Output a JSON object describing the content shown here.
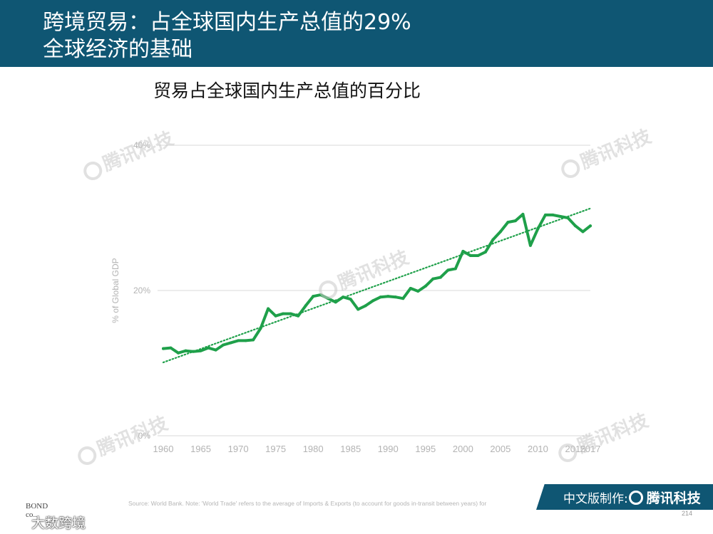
{
  "header": {
    "line1": "跨境贸易：占全球国内生产总值的29%",
    "line2": "全球经济的基础"
  },
  "chart_data": {
    "type": "line",
    "title": "贸易占全球国内生产总值的百分比",
    "ylabel": "% of Global GDP",
    "xlabel": "",
    "xlim": [
      1960,
      2017
    ],
    "ylim": [
      0,
      40
    ],
    "yticks": [
      "0%",
      "20%",
      "40%"
    ],
    "xticks": [
      "1960",
      "1965",
      "1970",
      "1975",
      "1980",
      "1985",
      "1990",
      "1995",
      "2000",
      "2005",
      "2010",
      "2015",
      "2017"
    ],
    "grid": "horizontal",
    "colors": {
      "line": "#1fa04a",
      "trend": "#1fa04a"
    },
    "series": [
      {
        "x": [
          1960,
          1961,
          1962,
          1963,
          1964,
          1965,
          1966,
          1967,
          1968,
          1969,
          1970,
          1971,
          1972,
          1973,
          1974,
          1975,
          1976,
          1977,
          1978,
          1979,
          1980,
          1981,
          1982,
          1983,
          1984,
          1985,
          1986,
          1987,
          1988,
          1989,
          1990,
          1991,
          1992,
          1993,
          1994,
          1995,
          1996,
          1997,
          1998,
          1999,
          2000,
          2001,
          2002,
          2003,
          2004,
          2005,
          2006,
          2007,
          2008,
          2009,
          2010,
          2011,
          2012,
          2013,
          2014,
          2015,
          2016,
          2017
        ],
        "values": [
          12.0,
          12.1,
          11.4,
          11.7,
          11.6,
          11.7,
          12.1,
          11.8,
          12.5,
          12.8,
          13.1,
          13.1,
          13.2,
          14.8,
          17.5,
          16.5,
          16.8,
          16.8,
          16.5,
          17.9,
          19.2,
          19.4,
          18.9,
          18.4,
          19.1,
          18.8,
          17.4,
          17.9,
          18.6,
          19.1,
          19.2,
          19.1,
          18.9,
          20.3,
          19.9,
          20.6,
          21.6,
          21.8,
          22.8,
          23.0,
          25.4,
          24.8,
          24.8,
          25.3,
          27.0,
          28.1,
          29.4,
          29.6,
          30.5,
          26.2,
          28.5,
          30.4,
          30.4,
          30.2,
          30.0,
          28.9,
          28.1,
          28.9
        ]
      }
    ],
    "trendline": {
      "style": "dotted",
      "start": [
        1960,
        10.1
      ],
      "end": [
        2017,
        31.3
      ]
    }
  },
  "watermark_text": "腾讯科技",
  "source": "Source: World Bank. Note: 'World Trade' refers to the average of Imports & Exports (to account for goods in-transit between years) for",
  "banner": {
    "label": "中文版制作:",
    "brand": "腾讯科技"
  },
  "page_number": "214",
  "corner": {
    "brand_line1": "BOND",
    "brand_line2": "co...",
    "watermark": "大数跨境"
  }
}
